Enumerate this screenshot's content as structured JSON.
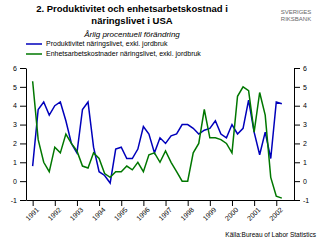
{
  "chart_data": {
    "type": "line",
    "title": [
      "2. Produktivitet och enhetsarbetskostnad i",
      "näringslivet i USA"
    ],
    "subtitle": "Årlig procentuell förändring",
    "annotations": [
      "SVERIGES\nRIKSBANK",
      "Källa:Bureau of Labor Statistics"
    ],
    "x": [
      1991,
      1991.25,
      1991.5,
      1991.75,
      1992,
      1992.25,
      1992.5,
      1992.75,
      1993,
      1993.25,
      1993.5,
      1993.75,
      1994,
      1994.25,
      1994.5,
      1994.75,
      1995,
      1995.25,
      1995.5,
      1995.75,
      1996,
      1996.25,
      1996.5,
      1996.75,
      1997,
      1997.25,
      1997.5,
      1997.75,
      1998,
      1998.25,
      1998.5,
      1998.75,
      1999,
      1999.25,
      1999.5,
      1999.75,
      2000,
      2000.25,
      2000.5,
      2000.75,
      2001,
      2001.25,
      2001.5,
      2001.75,
      2002,
      2002.25
    ],
    "series": [
      {
        "name": "Produktivitet näringslivet, exkl. jordbruk",
        "color": "#0000bb",
        "values": [
          0.8,
          3.8,
          4.2,
          3.5,
          4.0,
          4.2,
          3.2,
          2.0,
          1.5,
          3.8,
          4.2,
          1.8,
          0.5,
          0.3,
          -0.1,
          1.7,
          1.8,
          1.2,
          1.2,
          1.7,
          2.9,
          2.5,
          1.5,
          2.3,
          2.0,
          2.4,
          2.5,
          3.0,
          3.0,
          2.8,
          2.5,
          2.7,
          2.8,
          3.2,
          2.5,
          2.3,
          3.0,
          2.5,
          2.8,
          4.3,
          2.6,
          1.4,
          2.6,
          1.2,
          4.2,
          4.1
        ]
      },
      {
        "name": "Enhetsarbetskostnader näringslivet, exkl. jordbruk",
        "color": "#007700",
        "values": [
          5.3,
          2.2,
          1.0,
          0.5,
          1.8,
          1.5,
          2.5,
          2.0,
          1.6,
          0.8,
          0.7,
          1.5,
          1.2,
          0.4,
          0.2,
          0.5,
          0.5,
          0.8,
          0.6,
          1.0,
          0.5,
          1.4,
          1.5,
          1.0,
          1.6,
          1.0,
          0.5,
          0.0,
          0.0,
          1.5,
          2.0,
          3.8,
          2.3,
          2.3,
          2.2,
          2.0,
          1.5,
          4.5,
          5.0,
          4.8,
          2.6,
          4.7,
          3.5,
          0.2,
          -0.8,
          -0.9
        ]
      }
    ],
    "xlim": [
      1990.7,
      2002.8
    ],
    "xticks": [
      1991,
      1992,
      1993,
      1994,
      1995,
      1996,
      1997,
      1998,
      1999,
      2000,
      2001,
      2002
    ],
    "ylim": [
      -1,
      6
    ],
    "yticks": [
      -1,
      0,
      1,
      2,
      3,
      4,
      5,
      6
    ],
    "y2lim": [
      -1,
      6
    ],
    "y2ticks": [
      -1,
      0,
      1,
      2,
      3,
      4,
      5,
      6
    ],
    "legend": "top",
    "grid": false
  }
}
